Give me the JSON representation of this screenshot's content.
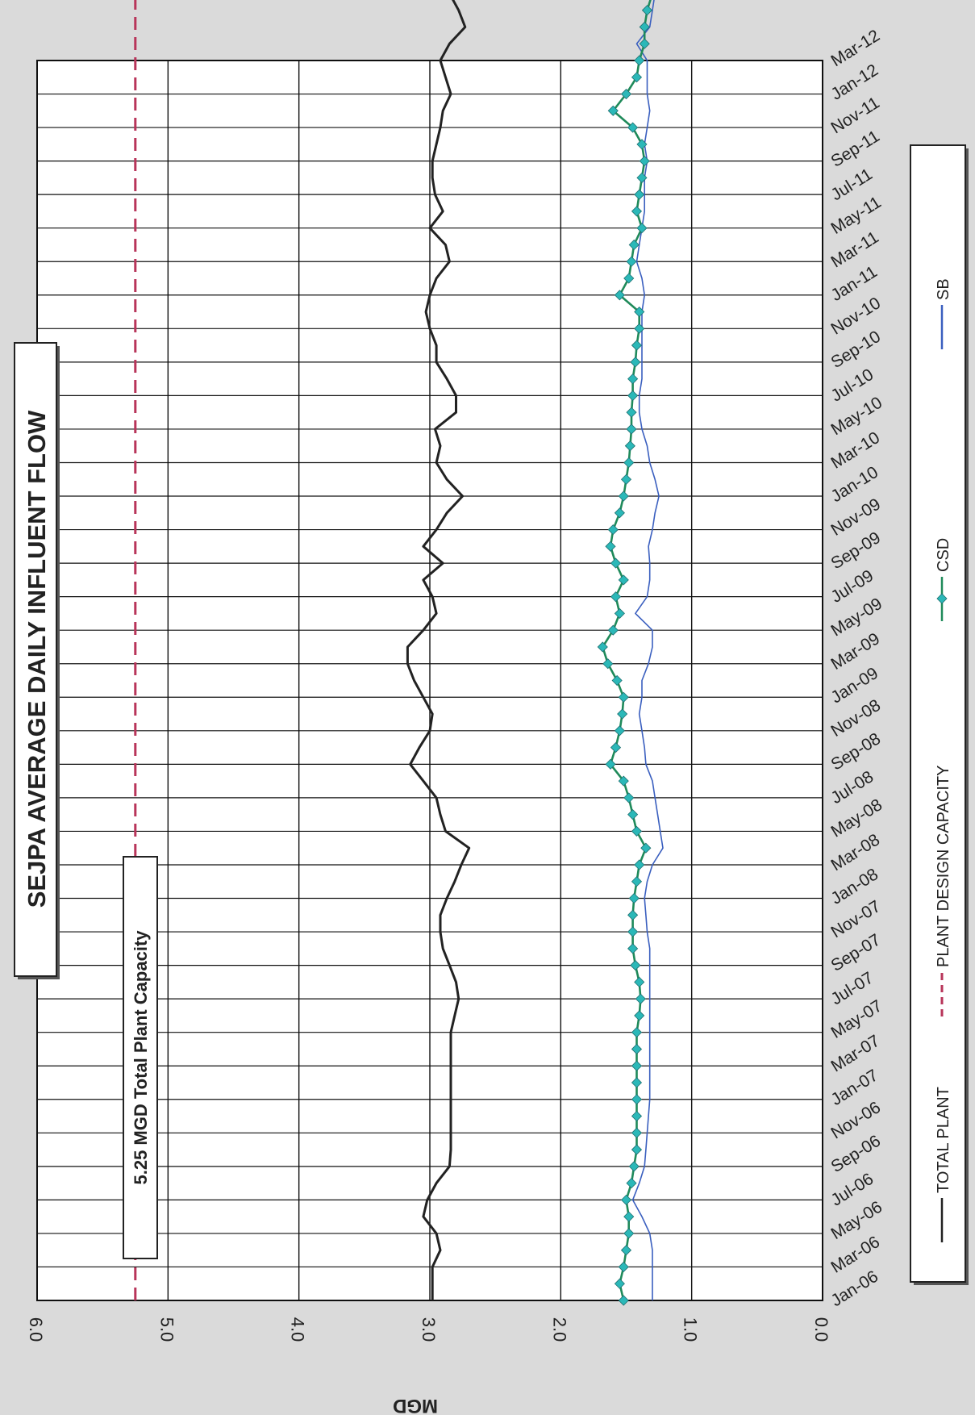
{
  "chart_data": {
    "type": "line",
    "title": "SEJPA AVERAGE DAILY INFLUENT FLOW",
    "ylabel": "MGD",
    "ylim": [
      0,
      6
    ],
    "y_ticks": [
      "0.0",
      "1.0",
      "2.0",
      "3.0",
      "4.0",
      "5.0",
      "6.0"
    ],
    "x_ticks": [
      "Jan-06",
      "Mar-06",
      "May-06",
      "Jul-06",
      "Sep-06",
      "Nov-06",
      "Jan-07",
      "Mar-07",
      "May-07",
      "Jul-07",
      "Sep-07",
      "Nov-07",
      "Jan-08",
      "Mar-08",
      "May-08",
      "Jul-08",
      "Sep-08",
      "Nov-08",
      "Jan-09",
      "Mar-09",
      "May-09",
      "Jul-09",
      "Sep-09",
      "Nov-09",
      "Jan-10",
      "Mar-10",
      "May-10",
      "Jul-10",
      "Sep-10",
      "Nov-10",
      "Jan-11",
      "Mar-11",
      "May-11",
      "Jul-11",
      "Sep-11",
      "Nov-11",
      "Jan-12",
      "Mar-12"
    ],
    "x_start": "Jan-06",
    "annotation": "5.25 MGD Total Plant Capacity",
    "grid": true,
    "legend_position": "bottom",
    "series": [
      {
        "name": "TOTAL PLANT",
        "color": "#222222",
        "style": "solid",
        "values": [
          2.98,
          2.98,
          2.98,
          2.92,
          2.95,
          3.05,
          3.02,
          2.95,
          2.85,
          2.84,
          2.84,
          2.84,
          2.84,
          2.84,
          2.84,
          2.84,
          2.84,
          2.81,
          2.78,
          2.8,
          2.85,
          2.9,
          2.92,
          2.92,
          2.87,
          2.81,
          2.76,
          2.7,
          2.88,
          2.92,
          2.95,
          3.05,
          3.15,
          3.08,
          3.0,
          2.98,
          3.05,
          3.12,
          3.17,
          3.17,
          3.05,
          2.95,
          2.98,
          3.05,
          2.9,
          3.05,
          2.95,
          2.87,
          2.75,
          2.87,
          2.95,
          2.92,
          2.96,
          2.8,
          2.8,
          2.87,
          2.95,
          2.95,
          3.0,
          3.03,
          3.0,
          2.95,
          2.85,
          2.88,
          3.0,
          2.9,
          2.96,
          2.98,
          2.98,
          2.95,
          2.92,
          2.9,
          2.84,
          2.88,
          2.92,
          2.85,
          2.73,
          2.78,
          2.85,
          2.8,
          2.72
        ]
      },
      {
        "name": "PLANT DESIGN CAPACITY",
        "color": "#b8355a",
        "style": "dashed",
        "values": [
          5.25,
          5.25,
          5.25,
          5.25,
          5.25,
          5.25,
          5.25,
          5.25,
          5.25,
          5.25,
          5.25,
          5.25,
          5.25,
          5.25,
          5.25,
          5.25,
          5.25,
          5.25,
          5.25,
          5.25,
          5.25,
          5.25,
          5.25,
          5.25,
          5.25,
          5.25,
          5.25,
          5.25,
          5.25,
          5.25,
          5.25,
          5.25,
          5.25,
          5.25,
          5.25,
          5.25,
          5.25,
          5.25,
          5.25,
          5.25,
          5.25,
          5.25,
          5.25,
          5.25,
          5.25,
          5.25,
          5.25,
          5.25,
          5.25,
          5.25,
          5.25,
          5.25,
          5.25,
          5.25,
          5.25,
          5.25,
          5.25,
          5.25,
          5.25,
          5.25,
          5.25,
          5.25,
          5.25,
          5.25,
          5.25,
          5.25,
          5.25,
          5.25,
          5.25,
          5.25,
          5.25,
          5.25,
          5.25,
          5.25,
          5.25,
          5.25,
          5.25,
          5.25,
          5.25,
          5.25,
          5.25
        ]
      },
      {
        "name": "CSD",
        "color": "#1f8a5a",
        "marker_color": "#2bb8b8",
        "style": "solid-markers",
        "values": [
          1.52,
          1.55,
          1.52,
          1.5,
          1.48,
          1.48,
          1.5,
          1.46,
          1.44,
          1.42,
          1.42,
          1.42,
          1.42,
          1.42,
          1.42,
          1.42,
          1.42,
          1.4,
          1.39,
          1.4,
          1.43,
          1.45,
          1.45,
          1.45,
          1.44,
          1.42,
          1.4,
          1.35,
          1.42,
          1.45,
          1.48,
          1.52,
          1.62,
          1.58,
          1.55,
          1.53,
          1.52,
          1.57,
          1.64,
          1.68,
          1.6,
          1.55,
          1.58,
          1.52,
          1.58,
          1.62,
          1.6,
          1.55,
          1.52,
          1.5,
          1.48,
          1.47,
          1.46,
          1.46,
          1.45,
          1.45,
          1.43,
          1.42,
          1.4,
          1.4,
          1.55,
          1.48,
          1.46,
          1.44,
          1.38,
          1.42,
          1.4,
          1.38,
          1.36,
          1.38,
          1.45,
          1.6,
          1.5,
          1.42,
          1.4,
          1.36,
          1.36,
          1.34,
          1.3,
          1.35,
          1.3
        ]
      },
      {
        "name": "SB",
        "color": "#3a5fbf",
        "style": "solid",
        "values": [
          1.3,
          1.3,
          1.3,
          1.3,
          1.32,
          1.38,
          1.45,
          1.4,
          1.36,
          1.35,
          1.34,
          1.33,
          1.32,
          1.32,
          1.32,
          1.32,
          1.32,
          1.32,
          1.32,
          1.32,
          1.32,
          1.32,
          1.34,
          1.35,
          1.36,
          1.34,
          1.3,
          1.22,
          1.24,
          1.26,
          1.28,
          1.3,
          1.35,
          1.36,
          1.38,
          1.4,
          1.38,
          1.38,
          1.33,
          1.3,
          1.3,
          1.43,
          1.34,
          1.32,
          1.32,
          1.33,
          1.3,
          1.28,
          1.25,
          1.28,
          1.32,
          1.34,
          1.38,
          1.4,
          1.4,
          1.38,
          1.38,
          1.38,
          1.38,
          1.38,
          1.36,
          1.38,
          1.42,
          1.4,
          1.38,
          1.36,
          1.36,
          1.36,
          1.34,
          1.36,
          1.34,
          1.32,
          1.34,
          1.34,
          1.34,
          1.42,
          1.32,
          1.3,
          1.28,
          1.32,
          1.3
        ]
      }
    ]
  }
}
